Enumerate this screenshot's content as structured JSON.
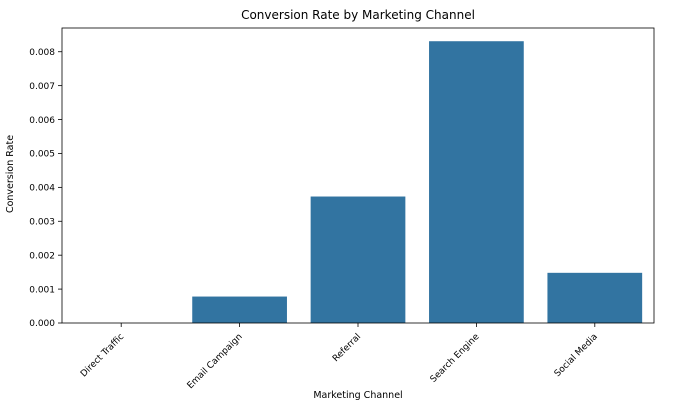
{
  "chart_data": {
    "type": "bar",
    "title": "Conversion Rate by Marketing Channel",
    "xlabel": "Marketing Channel",
    "ylabel": "Conversion Rate",
    "categories": [
      "Direct Traffic",
      "Email Campaign",
      "Referral",
      "Search Engine",
      "Social Media"
    ],
    "values": [
      0.0,
      0.00078,
      0.00373,
      0.00831,
      0.00148
    ],
    "ylim": [
      0,
      0.0087
    ],
    "yticks": [
      "0.000",
      "0.001",
      "0.002",
      "0.003",
      "0.004",
      "0.005",
      "0.006",
      "0.007",
      "0.008"
    ],
    "ytick_values": [
      0,
      0.001,
      0.002,
      0.003,
      0.004,
      0.005,
      0.006,
      0.007,
      0.008
    ],
    "grid": false,
    "bar_color": "#3274a1"
  }
}
